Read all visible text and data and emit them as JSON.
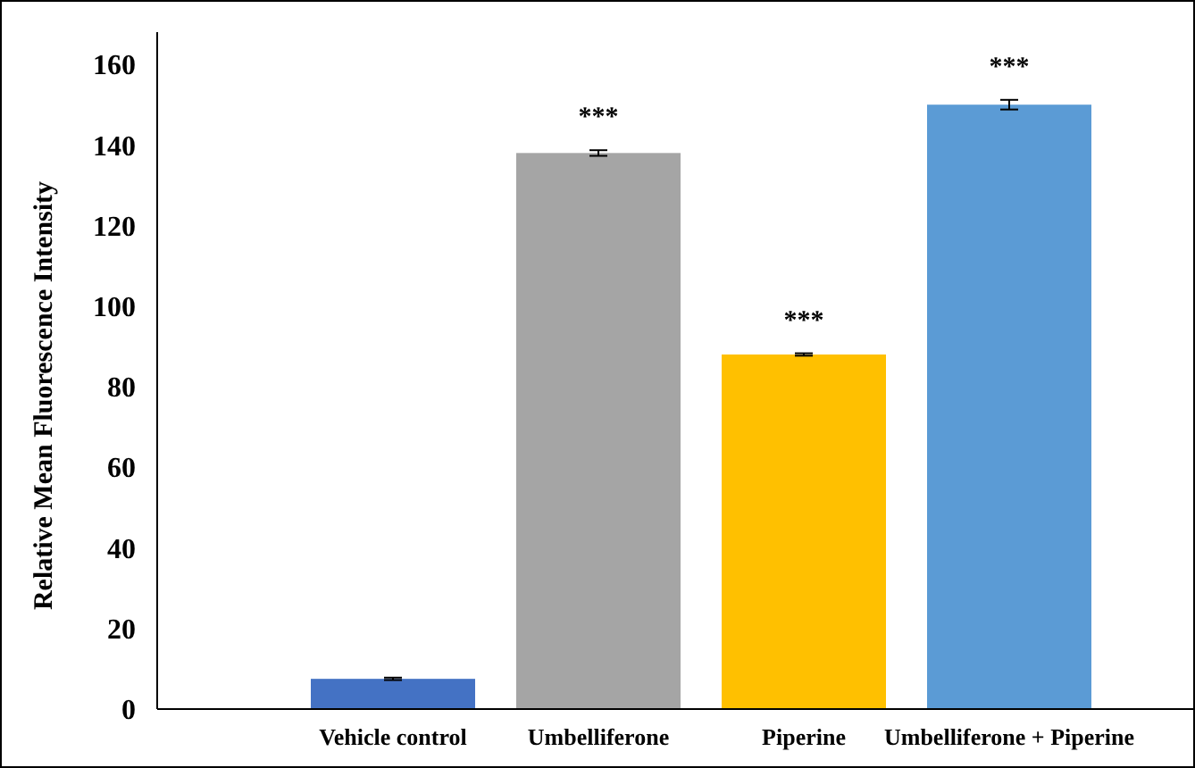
{
  "chart_data": {
    "type": "bar",
    "ylabel": "Relative Mean Fluorescence Intensity",
    "categories": [
      null,
      "Vehicle control",
      "Umbelliferone",
      "Piperine",
      "Umbelliferone + Piperine"
    ],
    "values": [
      null,
      7.5,
      138,
      88,
      150
    ],
    "colors": [
      null,
      "#4472c4",
      "#a5a5a5",
      "#ffc000",
      "#5b9bd5"
    ],
    "errors": [
      null,
      0.3,
      0.7,
      0.3,
      1.2
    ],
    "ylim": [
      0,
      168
    ],
    "yticks": [
      0,
      20,
      40,
      60,
      80,
      100,
      120,
      140,
      160
    ],
    "annotations": [
      {
        "text": "***",
        "x": "Umbelliferone",
        "y": 138.7
      },
      {
        "text": "***",
        "x": "Piperine",
        "y": 88.3
      },
      {
        "text": "***",
        "x": "Umbelliferone + Piperine",
        "y": 151.2
      }
    ]
  }
}
